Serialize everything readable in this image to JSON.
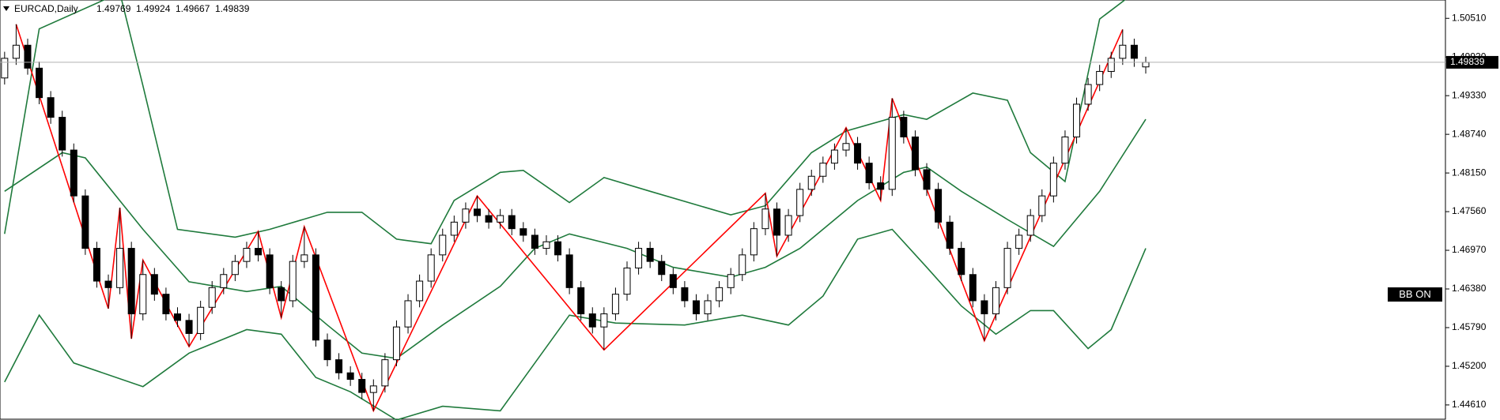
{
  "chart_data": {
    "type": "candlestick",
    "title": "EURCAD,Daily",
    "badge": "BB ON",
    "xlim": [
      -0.4,
      125
    ],
    "ylim": [
      1.4438,
      1.5079
    ],
    "yticks": [
      {
        "value": 1.5051,
        "label": "1.50510"
      },
      {
        "value": 1.4992,
        "label": "1.49920"
      },
      {
        "value": 1.4933,
        "label": "1.49330"
      },
      {
        "value": 1.4874,
        "label": "1.48740"
      },
      {
        "value": 1.4815,
        "label": "1.48150"
      },
      {
        "value": 1.4756,
        "label": "1.47560"
      },
      {
        "value": 1.4697,
        "label": "1.46970"
      },
      {
        "value": 1.4638,
        "label": "1.46380"
      },
      {
        "value": 1.4579,
        "label": "1.45790"
      },
      {
        "value": 1.452,
        "label": "1.45200"
      },
      {
        "value": 1.4461,
        "label": "1.44610"
      }
    ],
    "open": [
      1.496,
      1.499,
      1.501,
      1.4975,
      1.493,
      1.49,
      1.485,
      1.478,
      1.47,
      1.465,
      1.464,
      1.47,
      1.46,
      1.466,
      1.463,
      1.46,
      1.459,
      1.457,
      1.461,
      1.464,
      1.466,
      1.468,
      1.47,
      1.469,
      1.464,
      1.462,
      1.468,
      1.469,
      1.456,
      1.453,
      1.451,
      1.45,
      1.448,
      1.449,
      1.453,
      1.458,
      1.462,
      1.465,
      1.469,
      1.472,
      1.474,
      1.476,
      1.475,
      1.474,
      1.475,
      1.473,
      1.472,
      1.47,
      1.471,
      1.469,
      1.464,
      1.46,
      1.458,
      1.46,
      1.463,
      1.467,
      1.47,
      1.468,
      1.466,
      1.464,
      1.462,
      1.46,
      1.462,
      1.464,
      1.466,
      1.469,
      1.473,
      1.476,
      1.472,
      1.475,
      1.479,
      1.481,
      1.483,
      1.485,
      1.486,
      1.483,
      1.48,
      1.479,
      1.49,
      1.487,
      1.482,
      1.479,
      1.474,
      1.47,
      1.466,
      1.462,
      1.46,
      1.464,
      1.47,
      1.472,
      1.475,
      1.478,
      1.483,
      1.487,
      1.492,
      1.495,
      1.497,
      1.499,
      1.501,
      1.49769
    ],
    "high": [
      1.5,
      1.5042,
      1.502,
      1.4985,
      1.494,
      1.491,
      1.486,
      1.479,
      1.471,
      1.466,
      1.4762,
      1.471,
      1.4682,
      1.467,
      1.464,
      1.461,
      1.46,
      1.462,
      1.465,
      1.467,
      1.469,
      1.471,
      1.4726,
      1.47,
      1.465,
      1.469,
      1.4733,
      1.47,
      1.457,
      1.454,
      1.452,
      1.451,
      1.45,
      1.454,
      1.459,
      1.463,
      1.466,
      1.47,
      1.473,
      1.475,
      1.477,
      1.478,
      1.476,
      1.476,
      1.476,
      1.474,
      1.473,
      1.472,
      1.472,
      1.47,
      1.465,
      1.461,
      1.461,
      1.464,
      1.468,
      1.471,
      1.471,
      1.469,
      1.467,
      1.465,
      1.463,
      1.463,
      1.465,
      1.467,
      1.47,
      1.474,
      1.4784,
      1.477,
      1.476,
      1.48,
      1.482,
      1.484,
      1.486,
      1.4884,
      1.487,
      1.484,
      1.481,
      1.4929,
      1.491,
      1.488,
      1.483,
      1.48,
      1.475,
      1.471,
      1.467,
      1.463,
      1.465,
      1.471,
      1.473,
      1.476,
      1.479,
      1.484,
      1.488,
      1.493,
      1.496,
      1.498,
      1.5,
      1.5034,
      1.502,
      1.49924
    ],
    "low": [
      1.495,
      1.498,
      1.4965,
      1.492,
      1.489,
      1.484,
      1.477,
      1.469,
      1.464,
      1.4608,
      1.463,
      1.4562,
      1.459,
      1.462,
      1.459,
      1.458,
      1.455,
      1.456,
      1.46,
      1.463,
      1.465,
      1.467,
      1.468,
      1.463,
      1.4594,
      1.461,
      1.467,
      1.455,
      1.452,
      1.45,
      1.449,
      1.447,
      1.4452,
      1.448,
      1.452,
      1.457,
      1.461,
      1.464,
      1.468,
      1.471,
      1.473,
      1.474,
      1.473,
      1.473,
      1.472,
      1.471,
      1.469,
      1.469,
      1.468,
      1.463,
      1.459,
      1.457,
      1.4545,
      1.459,
      1.462,
      1.466,
      1.467,
      1.465,
      1.463,
      1.461,
      1.459,
      1.459,
      1.461,
      1.463,
      1.465,
      1.468,
      1.472,
      1.4688,
      1.471,
      1.474,
      1.478,
      1.48,
      1.482,
      1.484,
      1.482,
      1.479,
      1.4773,
      1.478,
      1.486,
      1.481,
      1.478,
      1.473,
      1.469,
      1.465,
      1.461,
      1.4559,
      1.459,
      1.463,
      1.469,
      1.471,
      1.474,
      1.477,
      1.482,
      1.486,
      1.491,
      1.494,
      1.496,
      1.498,
      1.4977,
      1.49667
    ],
    "close": [
      1.499,
      1.501,
      1.4975,
      1.493,
      1.49,
      1.485,
      1.478,
      1.47,
      1.465,
      1.464,
      1.47,
      1.46,
      1.466,
      1.463,
      1.46,
      1.459,
      1.457,
      1.461,
      1.464,
      1.466,
      1.468,
      1.47,
      1.469,
      1.464,
      1.462,
      1.468,
      1.469,
      1.456,
      1.453,
      1.451,
      1.45,
      1.448,
      1.449,
      1.453,
      1.458,
      1.462,
      1.465,
      1.469,
      1.472,
      1.474,
      1.476,
      1.475,
      1.474,
      1.475,
      1.473,
      1.472,
      1.47,
      1.471,
      1.469,
      1.464,
      1.46,
      1.458,
      1.46,
      1.463,
      1.467,
      1.47,
      1.468,
      1.466,
      1.464,
      1.462,
      1.46,
      1.462,
      1.464,
      1.466,
      1.469,
      1.473,
      1.476,
      1.472,
      1.475,
      1.479,
      1.481,
      1.483,
      1.485,
      1.486,
      1.483,
      1.48,
      1.479,
      1.49,
      1.487,
      1.482,
      1.479,
      1.474,
      1.47,
      1.466,
      1.462,
      1.46,
      1.464,
      1.47,
      1.472,
      1.475,
      1.478,
      1.483,
      1.487,
      1.492,
      1.495,
      1.497,
      1.499,
      1.501,
      1.499,
      1.49839
    ],
    "overlays": [
      {
        "color": "#1f7a3c",
        "x": [
          0,
          3,
          10,
          12,
          15,
          20,
          23,
          28,
          31,
          34,
          37,
          39,
          43,
          45,
          49,
          52,
          56,
          63,
          66,
          70,
          73,
          78,
          80,
          84,
          87,
          89,
          92,
          95,
          98
        ],
        "values": [
          1.4722,
          1.5035,
          1.509,
          1.4948,
          1.4729,
          1.4717,
          1.4729,
          1.4755,
          1.4755,
          1.4714,
          1.4707,
          1.4773,
          1.4816,
          1.4819,
          1.477,
          1.4808,
          1.4787,
          1.4751,
          1.4765,
          1.4846,
          1.4879,
          1.4904,
          1.4897,
          1.4937,
          1.4926,
          1.4846,
          1.4802,
          1.505,
          1.509
        ]
      },
      {
        "color": "#1f7a3c",
        "x": [
          0,
          5,
          7,
          12,
          16,
          21,
          24,
          28,
          31,
          34,
          38,
          43,
          46,
          49,
          54,
          58,
          63,
          66,
          69,
          74,
          78,
          80,
          83,
          87,
          91,
          95,
          99
        ],
        "values": [
          1.4787,
          1.4846,
          1.4838,
          1.4729,
          1.4649,
          1.4634,
          1.4642,
          1.4583,
          1.454,
          1.4532,
          1.4583,
          1.4642,
          1.47,
          1.4722,
          1.47,
          1.4671,
          1.4656,
          1.4671,
          1.47,
          1.4773,
          1.4816,
          1.4824,
          1.4787,
          1.4744,
          1.4703,
          1.4787,
          1.4897
        ]
      },
      {
        "color": "#1f7a3c",
        "x": [
          0,
          3,
          6,
          12,
          16,
          21,
          24,
          27,
          30,
          34,
          38,
          43,
          46,
          49,
          53,
          59,
          64,
          68,
          71,
          74,
          77,
          80,
          83,
          86,
          89,
          91,
          94,
          96,
          99
        ],
        "values": [
          1.4496,
          1.4598,
          1.4525,
          1.4489,
          1.454,
          1.4576,
          1.4569,
          1.4503,
          1.4481,
          1.4438,
          1.4459,
          1.4452,
          1.4525,
          1.4598,
          1.4586,
          1.4583,
          1.4598,
          1.4583,
          1.4627,
          1.4714,
          1.4729,
          1.4671,
          1.4612,
          1.4569,
          1.4605,
          1.4605,
          1.4547,
          1.4576,
          1.47
        ]
      },
      {
        "color": "#ff0000",
        "x": [
          1,
          9,
          10,
          11,
          12,
          16,
          22,
          24,
          26,
          32,
          41,
          52,
          66,
          67,
          73,
          76,
          77,
          85,
          97
        ],
        "values": [
          1.5042,
          1.4608,
          1.4762,
          1.4562,
          1.4682,
          1.455,
          1.4726,
          1.4594,
          1.4733,
          1.4452,
          1.478,
          1.4545,
          1.4784,
          1.4688,
          1.4884,
          1.4773,
          1.4929,
          1.4559,
          1.5034
        ]
      }
    ]
  }
}
